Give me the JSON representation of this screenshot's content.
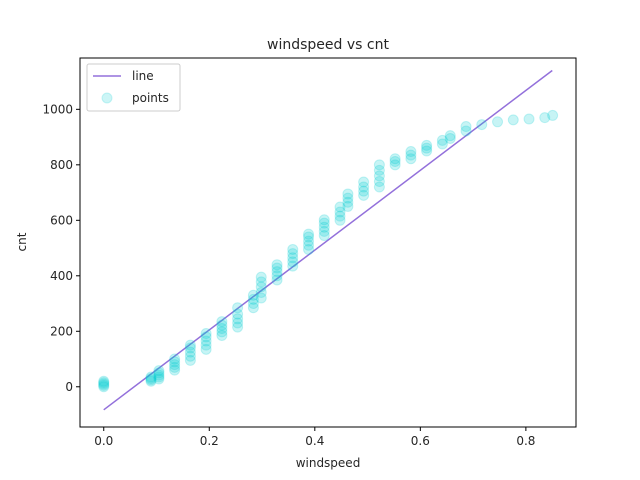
{
  "chart_data": {
    "type": "scatter",
    "title": "windspeed vs cnt",
    "xlabel": "windspeed",
    "ylabel": "cnt",
    "xlim": [
      -0.045,
      0.895
    ],
    "ylim": [
      -145,
      1185
    ],
    "xticks": [
      0.0,
      0.2,
      0.4,
      0.6,
      0.8
    ],
    "xtick_labels": [
      "0.0",
      "0.2",
      "0.4",
      "0.6",
      "0.8"
    ],
    "yticks": [
      0,
      200,
      400,
      600,
      800,
      1000
    ],
    "ytick_labels": [
      "0",
      "200",
      "400",
      "600",
      "800",
      "1000"
    ],
    "grid": false,
    "legend_position": "top-left",
    "colors": {
      "line": "#9370db",
      "points": "#00ced1"
    },
    "series": [
      {
        "name": "line",
        "kind": "line",
        "x": [
          0.0,
          0.85
        ],
        "y": [
          -83,
          1140
        ]
      },
      {
        "name": "points",
        "kind": "scatter",
        "x": [
          0.0,
          0.0,
          0.0,
          0.0,
          0.0,
          0.0896,
          0.0896,
          0.0896,
          0.0896,
          0.1045,
          0.1045,
          0.1045,
          0.1045,
          0.1045,
          0.1343,
          0.1343,
          0.1343,
          0.1343,
          0.1343,
          0.1642,
          0.1642,
          0.1642,
          0.1642,
          0.1642,
          0.194,
          0.194,
          0.194,
          0.194,
          0.194,
          0.2239,
          0.2239,
          0.2239,
          0.2239,
          0.2239,
          0.2537,
          0.2537,
          0.2537,
          0.2537,
          0.2537,
          0.2836,
          0.2836,
          0.2836,
          0.2836,
          0.2985,
          0.2985,
          0.2985,
          0.2985,
          0.2985,
          0.3284,
          0.3284,
          0.3284,
          0.3284,
          0.3284,
          0.3582,
          0.3582,
          0.3582,
          0.3582,
          0.3582,
          0.3881,
          0.3881,
          0.3881,
          0.3881,
          0.3881,
          0.4179,
          0.4179,
          0.4179,
          0.4179,
          0.4179,
          0.4478,
          0.4478,
          0.4478,
          0.4478,
          0.4627,
          0.4627,
          0.4627,
          0.4627,
          0.4925,
          0.4925,
          0.4925,
          0.4925,
          0.5224,
          0.5224,
          0.5224,
          0.5224,
          0.5224,
          0.5522,
          0.5522,
          0.5522,
          0.5821,
          0.5821,
          0.5821,
          0.6119,
          0.6119,
          0.6119,
          0.6418,
          0.6418,
          0.6567,
          0.6567,
          0.6866,
          0.6866,
          0.7164,
          0.7463,
          0.7761,
          0.806,
          0.8358,
          0.8507
        ],
        "y": [
          0,
          5,
          10,
          15,
          20,
          20,
          25,
          30,
          35,
          28,
          35,
          42,
          50,
          58,
          60,
          70,
          80,
          90,
          100,
          95,
          110,
          125,
          140,
          150,
          135,
          150,
          165,
          180,
          192,
          185,
          198,
          210,
          222,
          235,
          215,
          230,
          245,
          262,
          285,
          285,
          300,
          315,
          330,
          320,
          340,
          360,
          378,
          395,
          385,
          400,
          415,
          428,
          440,
          435,
          450,
          465,
          480,
          495,
          495,
          510,
          525,
          540,
          550,
          545,
          560,
          575,
          590,
          602,
          600,
          615,
          630,
          648,
          650,
          665,
          680,
          695,
          690,
          705,
          720,
          738,
          720,
          740,
          760,
          780,
          800,
          800,
          812,
          822,
          822,
          835,
          848,
          850,
          860,
          870,
          875,
          888,
          895,
          905,
          922,
          938,
          945,
          955,
          962,
          965,
          970,
          978
        ]
      }
    ]
  }
}
